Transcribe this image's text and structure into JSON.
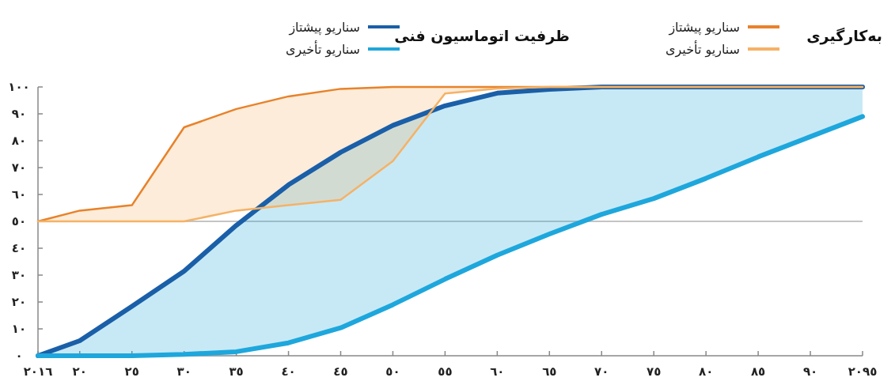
{
  "chart_data": {
    "type": "line",
    "x": [
      2016,
      2020,
      2025,
      2030,
      2035,
      2040,
      2045,
      2050,
      2055,
      2060,
      2065,
      2070,
      2075,
      2080,
      2085,
      2090,
      2095
    ],
    "xlim": [
      2016,
      2095
    ],
    "xticks": [
      {
        "value": 2016,
        "label": "٢٠١٦"
      },
      {
        "value": 2020,
        "label": "٢٠"
      },
      {
        "value": 2025,
        "label": "٢٥"
      },
      {
        "value": 2030,
        "label": "٣٠"
      },
      {
        "value": 2035,
        "label": "٣٥"
      },
      {
        "value": 2040,
        "label": "٤٠"
      },
      {
        "value": 2045,
        "label": "٤٥"
      },
      {
        "value": 2050,
        "label": "٥٠"
      },
      {
        "value": 2055,
        "label": "٥٥"
      },
      {
        "value": 2060,
        "label": "٦٠"
      },
      {
        "value": 2065,
        "label": "٦٥"
      },
      {
        "value": 2070,
        "label": "٧٠"
      },
      {
        "value": 2075,
        "label": "٧٥"
      },
      {
        "value": 2080,
        "label": "٨٠"
      },
      {
        "value": 2085,
        "label": "٨٥"
      },
      {
        "value": 2090,
        "label": "٩٠"
      },
      {
        "value": 2095,
        "label": "٢٠٩٥"
      }
    ],
    "ylim": [
      0,
      100
    ],
    "yticks": [
      {
        "value": 0,
        "label": "٠"
      },
      {
        "value": 10,
        "label": "١٠"
      },
      {
        "value": 20,
        "label": "٢٠"
      },
      {
        "value": 30,
        "label": "٣٠"
      },
      {
        "value": 40,
        "label": "٤٠"
      },
      {
        "value": 50,
        "label": "٥٠"
      },
      {
        "value": 60,
        "label": "٦٠"
      },
      {
        "value": 70,
        "label": "٧٠"
      },
      {
        "value": 80,
        "label": "٨٠"
      },
      {
        "value": 90,
        "label": "٩٠"
      },
      {
        "value": 100,
        "label": "١٠٠"
      }
    ],
    "series": [
      {
        "name": "سناریو پیشتاز",
        "color": "#1a5fa8",
        "values": [
          0,
          5.6,
          18.4,
          31.5,
          48.5,
          63.6,
          75.7,
          85.7,
          93,
          97.7,
          99.1,
          100,
          100,
          100,
          100,
          100,
          100
        ]
      },
      {
        "name": "سناریو تأخیری",
        "color": "#1ea7dc",
        "values": [
          0,
          0,
          0,
          0.5,
          1.5,
          4.8,
          10.4,
          19,
          28.5,
          37.4,
          45.3,
          52.6,
          58.5,
          66,
          74,
          81.5,
          89
        ],
        "lower": [
          0,
          0,
          0,
          0.5,
          1.5,
          4.8,
          10.4,
          19,
          28.5,
          37.4,
          45.3,
          52.6,
          58.5,
          66,
          74,
          81.5,
          89
        ],
        "upper": [
          0,
          5.6,
          18.4,
          31.5,
          48.5,
          63.6,
          75.7,
          85.7,
          93,
          97.7,
          99.1,
          100,
          100,
          100,
          100,
          100,
          100
        ]
      },
      {
        "name": "سناریو پیشتاز",
        "color": "#e8822a",
        "values": [
          50,
          54,
          56,
          85,
          91.8,
          96.5,
          99.3,
          100,
          100,
          100,
          100,
          100,
          100,
          100,
          100,
          100,
          100
        ]
      },
      {
        "name": "سناریو تأخیری",
        "color": "#f5b266",
        "values": [
          50,
          50,
          50,
          50,
          54,
          56,
          58,
          72.4,
          97.6,
          99.4,
          100,
          100,
          100,
          100,
          100,
          100,
          100
        ],
        "lower": [
          50,
          50,
          50,
          50,
          54,
          56,
          58,
          72.4,
          97.6,
          99.4,
          100,
          100,
          100,
          100,
          100,
          100,
          100
        ],
        "upper": [
          50,
          54,
          56,
          85,
          91.8,
          96.5,
          99.3,
          100,
          100,
          100,
          100,
          100,
          100,
          100,
          100,
          100,
          100
        ]
      }
    ],
    "annotations": [
      "ظرفیت اتوماسیون فنی",
      "به‌کارگیری"
    ],
    "ref_lines": [
      {
        "axis": "y",
        "value": 50,
        "color": "#b0b0b0"
      }
    ],
    "legend": "top",
    "grid": false
  }
}
